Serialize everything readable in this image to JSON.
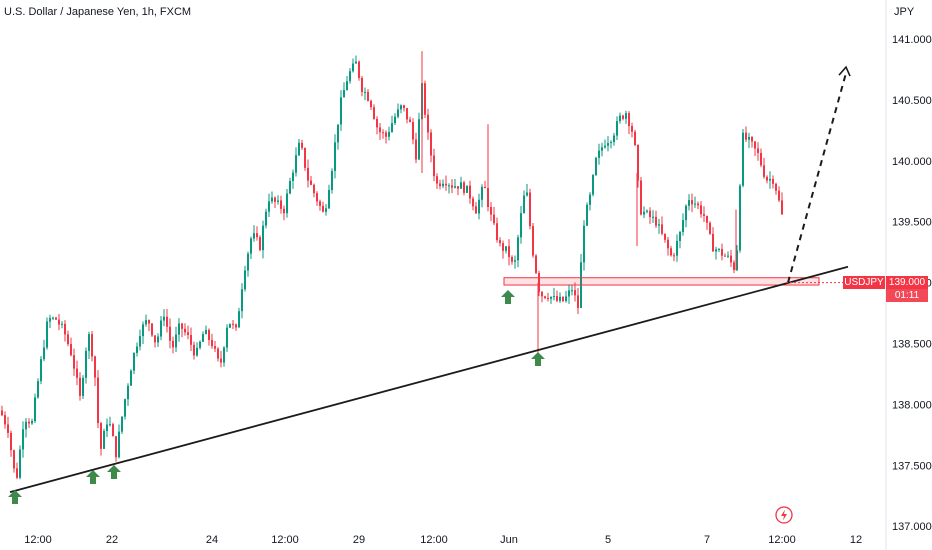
{
  "header": {
    "title": "U.S. Dollar / Japanese Yen, 1h, FXCM",
    "unit": "JPY"
  },
  "price_badge": {
    "symbol": "USDJPY",
    "price": "139.000",
    "countdown": "01:11"
  },
  "colors": {
    "up": "#089981",
    "down": "#f23645",
    "trendline": "#1b1b1b",
    "arrow": "#3e8a4b",
    "zone": "#f23645"
  },
  "icons": {
    "logo": "tradingview-logo-icon",
    "arrow": "up-arrow-icon"
  },
  "chart_data": {
    "type": "candlestick",
    "title": "U.S. Dollar / Japanese Yen, 1h, FXCM",
    "ylabel": "JPY",
    "ylim": [
      137.0,
      141.1
    ],
    "y_ticks": [
      "141.000",
      "140.500",
      "140.000",
      "139.500",
      "139.000",
      "138.500",
      "138.000",
      "137.500",
      "137.000"
    ],
    "x_ticks": [
      "12:00",
      "22",
      "24",
      "12:00",
      "29",
      "12:00",
      "Jun",
      "5",
      "7",
      "12:00",
      "12"
    ],
    "price_path": [
      [
        0,
        137.95
      ],
      [
        8,
        137.8
      ],
      [
        16,
        137.35
      ],
      [
        24,
        137.9
      ],
      [
        32,
        137.85
      ],
      [
        40,
        138.3
      ],
      [
        48,
        138.7
      ],
      [
        56,
        138.7
      ],
      [
        64,
        138.6
      ],
      [
        72,
        138.4
      ],
      [
        80,
        138.05
      ],
      [
        88,
        138.6
      ],
      [
        94,
        138.35
      ],
      [
        100,
        137.6
      ],
      [
        108,
        137.9
      ],
      [
        116,
        137.6
      ],
      [
        124,
        138.0
      ],
      [
        132,
        138.35
      ],
      [
        140,
        138.6
      ],
      [
        148,
        138.7
      ],
      [
        156,
        138.5
      ],
      [
        164,
        138.75
      ],
      [
        172,
        138.45
      ],
      [
        180,
        138.65
      ],
      [
        188,
        138.55
      ],
      [
        196,
        138.4
      ],
      [
        204,
        138.6
      ],
      [
        212,
        138.5
      ],
      [
        220,
        138.3
      ],
      [
        228,
        138.7
      ],
      [
        236,
        138.6
      ],
      [
        244,
        139.1
      ],
      [
        252,
        139.4
      ],
      [
        260,
        139.3
      ],
      [
        268,
        139.7
      ],
      [
        276,
        139.65
      ],
      [
        284,
        139.6
      ],
      [
        292,
        139.9
      ],
      [
        300,
        140.15
      ],
      [
        308,
        139.85
      ],
      [
        316,
        139.7
      ],
      [
        324,
        139.55
      ],
      [
        332,
        139.95
      ],
      [
        340,
        140.45
      ],
      [
        348,
        140.7
      ],
      [
        356,
        140.8
      ],
      [
        362,
        140.6
      ],
      [
        370,
        140.5
      ],
      [
        378,
        140.25
      ],
      [
        386,
        140.2
      ],
      [
        394,
        140.35
      ],
      [
        402,
        140.45
      ],
      [
        410,
        140.3
      ],
      [
        416,
        140.05
      ],
      [
        422,
        140.6
      ],
      [
        428,
        140.2
      ],
      [
        436,
        139.8
      ],
      [
        444,
        139.85
      ],
      [
        452,
        139.8
      ],
      [
        460,
        139.8
      ],
      [
        468,
        139.75
      ],
      [
        476,
        139.6
      ],
      [
        484,
        139.8
      ],
      [
        492,
        139.5
      ],
      [
        500,
        139.3
      ],
      [
        508,
        139.25
      ],
      [
        514,
        139.1
      ],
      [
        520,
        139.5
      ],
      [
        526,
        139.8
      ],
      [
        532,
        139.3
      ],
      [
        540,
        138.9
      ],
      [
        548,
        138.9
      ],
      [
        556,
        138.85
      ],
      [
        564,
        138.85
      ],
      [
        572,
        138.95
      ],
      [
        578,
        138.8
      ],
      [
        584,
        139.5
      ],
      [
        590,
        139.7
      ],
      [
        596,
        140.0
      ],
      [
        604,
        140.15
      ],
      [
        612,
        140.2
      ],
      [
        620,
        140.35
      ],
      [
        626,
        140.4
      ],
      [
        634,
        140.2
      ],
      [
        640,
        139.6
      ],
      [
        648,
        139.55
      ],
      [
        656,
        139.5
      ],
      [
        664,
        139.35
      ],
      [
        672,
        139.2
      ],
      [
        680,
        139.4
      ],
      [
        688,
        139.7
      ],
      [
        696,
        139.65
      ],
      [
        704,
        139.55
      ],
      [
        712,
        139.3
      ],
      [
        720,
        139.25
      ],
      [
        728,
        139.2
      ],
      [
        736,
        139.1
      ],
      [
        742,
        140.2
      ],
      [
        750,
        140.15
      ],
      [
        758,
        140.05
      ],
      [
        766,
        139.85
      ],
      [
        774,
        139.85
      ],
      [
        782,
        139.55
      ],
      [
        786,
        139.0
      ]
    ],
    "annotations": {
      "trendline": [
        [
          10,
          137.28
        ],
        [
          848,
          139.13
        ]
      ],
      "support_zone": {
        "x": [
          504,
          819
        ],
        "y": [
          138.98,
          139.04
        ]
      },
      "projection": [
        [
          788,
          139.0
        ],
        [
          846,
          140.72
        ]
      ],
      "arrow_markers_at": [
        15,
        93,
        114,
        508,
        538
      ]
    }
  }
}
